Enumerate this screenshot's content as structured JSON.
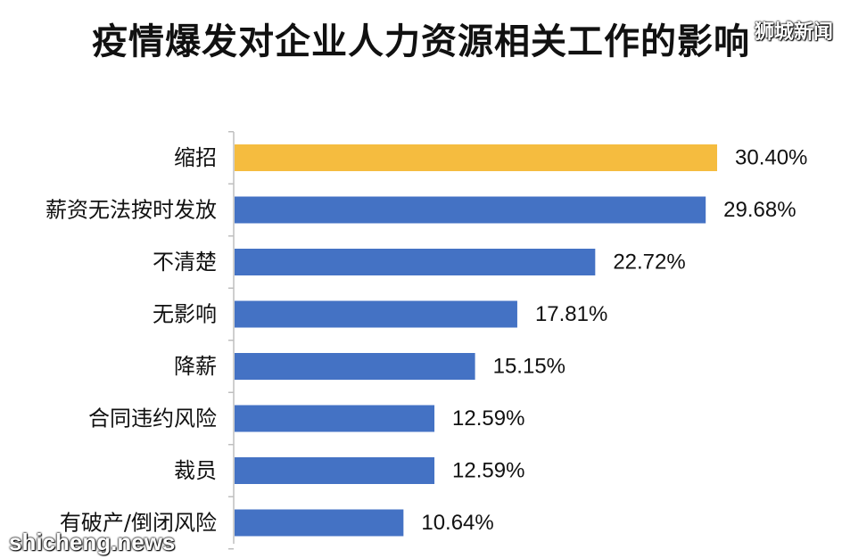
{
  "watermarks": {
    "top_right": "狮城新闻",
    "bottom_left": "shicheng.news"
  },
  "chart_data": {
    "type": "bar",
    "orientation": "horizontal",
    "title": "疫情爆发对企业人力资源相关工作的影响",
    "categories": [
      "缩招",
      "薪资无法按时发放",
      "不清楚",
      "无影响",
      "降薪",
      "合同违约风险",
      "裁员",
      "有破产/倒闭风险"
    ],
    "values": [
      30.4,
      29.68,
      22.72,
      17.81,
      15.15,
      12.59,
      12.59,
      10.64
    ],
    "value_labels": [
      "30.40%",
      "29.68%",
      "22.72%",
      "17.81%",
      "15.15%",
      "12.59%",
      "12.59%",
      "10.64%"
    ],
    "bar_colors": [
      "#F5BC3F",
      "#4472C4",
      "#4472C4",
      "#4472C4",
      "#4472C4",
      "#4472C4",
      "#4472C4",
      "#4472C4"
    ],
    "xlim": [
      0,
      30.4
    ],
    "grid": false,
    "legend": "none"
  }
}
